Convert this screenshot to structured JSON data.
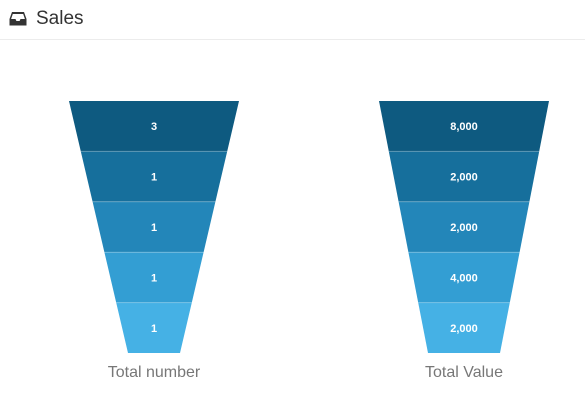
{
  "header": {
    "title": "Sales",
    "icon": "inbox-icon"
  },
  "chart_data": [
    {
      "type": "funnel",
      "title": "Total number",
      "stages": [
        {
          "value": 3,
          "label": "3"
        },
        {
          "value": 1,
          "label": "1"
        },
        {
          "value": 1,
          "label": "1"
        },
        {
          "value": 1,
          "label": "1"
        },
        {
          "value": 1,
          "label": "1"
        }
      ]
    },
    {
      "type": "funnel",
      "title": "Total Value",
      "stages": [
        {
          "value": 8000,
          "label": "8,000"
        },
        {
          "value": 2000,
          "label": "2,000"
        },
        {
          "value": 2000,
          "label": "2,000"
        },
        {
          "value": 4000,
          "label": "4,000"
        },
        {
          "value": 2000,
          "label": "2,000"
        }
      ]
    }
  ],
  "colors": [
    "#0e5a80",
    "#166f9c",
    "#2386b9",
    "#339ed3",
    "#45b1e5"
  ]
}
